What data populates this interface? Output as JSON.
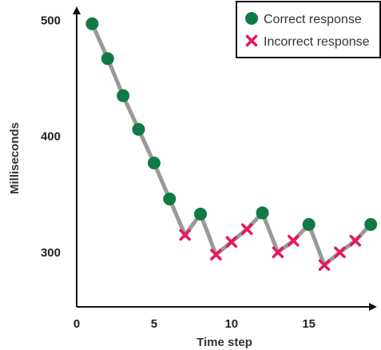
{
  "chart_data": {
    "type": "line",
    "xlabel": "Time step",
    "ylabel": "Milliseconds",
    "xlim": [
      0,
      19.3
    ],
    "ylim": [
      253,
      512
    ],
    "xticks": [
      0,
      5,
      10,
      15
    ],
    "xtick_labels": [
      "0",
      "5",
      "10",
      "15"
    ],
    "yticks": [
      300,
      400,
      500
    ],
    "ytick_labels": [
      "300",
      "400",
      "500"
    ],
    "grid": false,
    "legend_position": "top-right",
    "legend": [
      {
        "label": "Correct response",
        "marker": "circle"
      },
      {
        "label": "Incorrect response",
        "marker": "x"
      }
    ],
    "x": [
      1,
      2,
      3,
      4,
      5,
      6,
      7,
      8,
      9,
      10,
      11,
      12,
      13,
      14,
      15,
      16,
      17,
      18,
      19
    ],
    "y": [
      497,
      467,
      435,
      406,
      377,
      346,
      315,
      333,
      298,
      309,
      320,
      334,
      300,
      310,
      324,
      289,
      300,
      310,
      324
    ],
    "response": [
      "correct",
      "correct",
      "correct",
      "correct",
      "correct",
      "correct",
      "incorrect",
      "correct",
      "incorrect",
      "incorrect",
      "incorrect",
      "correct",
      "incorrect",
      "incorrect",
      "correct",
      "incorrect",
      "incorrect",
      "incorrect",
      "correct"
    ],
    "colors": {
      "line": "#999999",
      "correct": "#0f7a45",
      "incorrect": "#e8185a",
      "axis": "#111111"
    }
  }
}
